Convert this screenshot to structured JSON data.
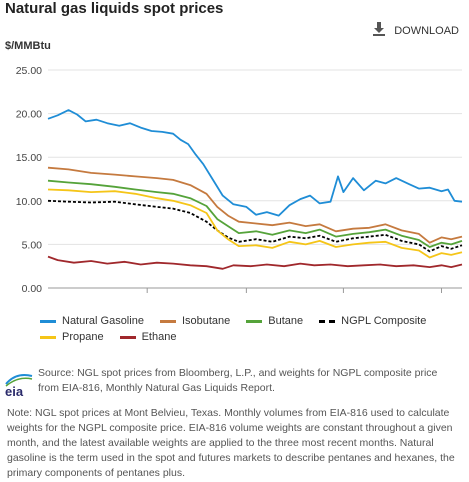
{
  "header": {
    "title": "Natural gas liquids spot prices",
    "download_label": "DOWNLOAD",
    "unit": "$/MMBtu"
  },
  "chart_data": {
    "type": "line",
    "title": "Natural gas liquids spot prices",
    "ylabel": "$/MMBtu",
    "xlabel": "",
    "ylim": [
      0,
      25
    ],
    "yticks": [
      "0.00",
      "5.00",
      "10.00",
      "15.00",
      "20.00",
      "25.00"
    ],
    "xlim": [
      "2014-07-01",
      "2015-07-20"
    ],
    "xticks": [
      {
        "label": "Oct '14",
        "date": "2014-10-01"
      },
      {
        "label": "Jan '15",
        "date": "2015-01-01"
      },
      {
        "label": "Apr '15",
        "date": "2015-04-01"
      },
      {
        "label": "Jul '15",
        "date": "2015-07-01"
      }
    ],
    "grid": true,
    "legend_position": "bottom",
    "series": [
      {
        "name": "Natural Gasoline",
        "color": "#1f8dd6",
        "dash": false,
        "points": [
          [
            "2014-07-01",
            19.4
          ],
          [
            "2014-07-10",
            19.8
          ],
          [
            "2014-07-20",
            20.4
          ],
          [
            "2014-07-28",
            19.9
          ],
          [
            "2014-08-05",
            19.1
          ],
          [
            "2014-08-15",
            19.3
          ],
          [
            "2014-08-25",
            18.9
          ],
          [
            "2014-09-05",
            18.6
          ],
          [
            "2014-09-15",
            18.9
          ],
          [
            "2014-09-25",
            18.4
          ],
          [
            "2014-10-05",
            18.0
          ],
          [
            "2014-10-15",
            17.9
          ],
          [
            "2014-10-25",
            17.7
          ],
          [
            "2014-11-01",
            17.0
          ],
          [
            "2014-11-08",
            16.5
          ],
          [
            "2014-11-15",
            15.3
          ],
          [
            "2014-11-22",
            14.2
          ],
          [
            "2014-12-01",
            12.4
          ],
          [
            "2014-12-10",
            10.6
          ],
          [
            "2014-12-20",
            9.6
          ],
          [
            "2015-01-01",
            9.3
          ],
          [
            "2015-01-10",
            8.4
          ],
          [
            "2015-01-20",
            8.7
          ],
          [
            "2015-01-31",
            8.3
          ],
          [
            "2015-02-10",
            9.5
          ],
          [
            "2015-02-20",
            10.2
          ],
          [
            "2015-03-01",
            10.6
          ],
          [
            "2015-03-10",
            9.7
          ],
          [
            "2015-03-20",
            9.9
          ],
          [
            "2015-03-27",
            12.8
          ],
          [
            "2015-04-01",
            11.0
          ],
          [
            "2015-04-10",
            12.6
          ],
          [
            "2015-04-20",
            11.2
          ],
          [
            "2015-05-01",
            12.3
          ],
          [
            "2015-05-10",
            12.0
          ],
          [
            "2015-05-20",
            12.6
          ],
          [
            "2015-06-01",
            11.9
          ],
          [
            "2015-06-10",
            11.4
          ],
          [
            "2015-06-20",
            11.5
          ],
          [
            "2015-07-01",
            11.1
          ],
          [
            "2015-07-07",
            11.3
          ],
          [
            "2015-07-13",
            10.0
          ],
          [
            "2015-07-20",
            9.9
          ]
        ]
      },
      {
        "name": "Isobutane",
        "color": "#c57a3f",
        "dash": false,
        "points": [
          [
            "2014-07-01",
            13.8
          ],
          [
            "2014-07-20",
            13.6
          ],
          [
            "2014-08-10",
            13.2
          ],
          [
            "2014-09-01",
            13.0
          ],
          [
            "2014-09-20",
            12.8
          ],
          [
            "2014-10-10",
            12.6
          ],
          [
            "2014-10-25",
            12.4
          ],
          [
            "2014-11-10",
            11.8
          ],
          [
            "2014-11-25",
            10.8
          ],
          [
            "2014-12-05",
            9.3
          ],
          [
            "2014-12-15",
            8.3
          ],
          [
            "2014-12-25",
            7.6
          ],
          [
            "2015-01-10",
            7.4
          ],
          [
            "2015-01-25",
            7.2
          ],
          [
            "2015-02-10",
            7.5
          ],
          [
            "2015-02-25",
            7.1
          ],
          [
            "2015-03-10",
            7.3
          ],
          [
            "2015-03-25",
            6.5
          ],
          [
            "2015-04-10",
            6.8
          ],
          [
            "2015-04-25",
            6.9
          ],
          [
            "2015-05-10",
            7.3
          ],
          [
            "2015-05-25",
            6.6
          ],
          [
            "2015-06-10",
            6.2
          ],
          [
            "2015-06-20",
            5.2
          ],
          [
            "2015-07-01",
            5.8
          ],
          [
            "2015-07-10",
            5.6
          ],
          [
            "2015-07-20",
            5.9
          ]
        ]
      },
      {
        "name": "Butane",
        "color": "#55a33a",
        "dash": false,
        "points": [
          [
            "2014-07-01",
            12.3
          ],
          [
            "2014-07-20",
            12.1
          ],
          [
            "2014-08-10",
            11.9
          ],
          [
            "2014-09-01",
            11.6
          ],
          [
            "2014-09-20",
            11.3
          ],
          [
            "2014-10-10",
            11.0
          ],
          [
            "2014-10-25",
            10.8
          ],
          [
            "2014-11-10",
            10.3
          ],
          [
            "2014-11-25",
            9.4
          ],
          [
            "2014-12-05",
            7.9
          ],
          [
            "2014-12-15",
            7.1
          ],
          [
            "2014-12-25",
            6.3
          ],
          [
            "2015-01-10",
            6.5
          ],
          [
            "2015-01-25",
            6.1
          ],
          [
            "2015-02-10",
            6.6
          ],
          [
            "2015-02-25",
            6.3
          ],
          [
            "2015-03-10",
            6.7
          ],
          [
            "2015-03-25",
            5.9
          ],
          [
            "2015-04-10",
            6.2
          ],
          [
            "2015-04-25",
            6.4
          ],
          [
            "2015-05-10",
            6.7
          ],
          [
            "2015-05-25",
            6.0
          ],
          [
            "2015-06-10",
            5.5
          ],
          [
            "2015-06-20",
            4.7
          ],
          [
            "2015-07-01",
            5.2
          ],
          [
            "2015-07-10",
            5.0
          ],
          [
            "2015-07-20",
            5.4
          ]
        ]
      },
      {
        "name": "NGPL Composite",
        "color": "#000000",
        "dash": true,
        "points": [
          [
            "2014-07-01",
            10.0
          ],
          [
            "2014-07-20",
            9.9
          ],
          [
            "2014-08-10",
            9.8
          ],
          [
            "2014-09-01",
            9.9
          ],
          [
            "2014-09-20",
            9.6
          ],
          [
            "2014-10-10",
            9.3
          ],
          [
            "2014-10-25",
            9.1
          ],
          [
            "2014-11-10",
            8.6
          ],
          [
            "2014-11-25",
            7.6
          ],
          [
            "2014-12-05",
            6.6
          ],
          [
            "2014-12-15",
            5.8
          ],
          [
            "2014-12-25",
            5.3
          ],
          [
            "2015-01-10",
            5.6
          ],
          [
            "2015-01-25",
            5.3
          ],
          [
            "2015-02-10",
            5.9
          ],
          [
            "2015-02-25",
            5.7
          ],
          [
            "2015-03-10",
            6.0
          ],
          [
            "2015-03-25",
            5.3
          ],
          [
            "2015-04-10",
            5.7
          ],
          [
            "2015-04-25",
            5.9
          ],
          [
            "2015-05-10",
            6.1
          ],
          [
            "2015-05-25",
            5.4
          ],
          [
            "2015-06-10",
            5.0
          ],
          [
            "2015-06-20",
            4.2
          ],
          [
            "2015-07-01",
            4.8
          ],
          [
            "2015-07-10",
            4.5
          ],
          [
            "2015-07-20",
            4.9
          ]
        ]
      },
      {
        "name": "Propane",
        "color": "#f5c518",
        "dash": false,
        "points": [
          [
            "2014-07-01",
            11.3
          ],
          [
            "2014-07-20",
            11.2
          ],
          [
            "2014-08-10",
            11.0
          ],
          [
            "2014-09-01",
            11.1
          ],
          [
            "2014-09-20",
            10.8
          ],
          [
            "2014-10-10",
            10.3
          ],
          [
            "2014-10-25",
            10.0
          ],
          [
            "2014-11-10",
            9.5
          ],
          [
            "2014-11-25",
            8.6
          ],
          [
            "2014-12-05",
            6.6
          ],
          [
            "2014-12-15",
            5.6
          ],
          [
            "2014-12-25",
            4.8
          ],
          [
            "2015-01-10",
            4.9
          ],
          [
            "2015-01-25",
            4.6
          ],
          [
            "2015-02-10",
            5.3
          ],
          [
            "2015-02-25",
            5.0
          ],
          [
            "2015-03-10",
            5.4
          ],
          [
            "2015-03-25",
            4.7
          ],
          [
            "2015-04-10",
            5.0
          ],
          [
            "2015-04-25",
            5.2
          ],
          [
            "2015-05-10",
            5.3
          ],
          [
            "2015-05-25",
            4.6
          ],
          [
            "2015-06-10",
            4.3
          ],
          [
            "2015-06-20",
            3.5
          ],
          [
            "2015-07-01",
            4.0
          ],
          [
            "2015-07-10",
            3.8
          ],
          [
            "2015-07-20",
            4.1
          ]
        ]
      },
      {
        "name": "Ethane",
        "color": "#a0282c",
        "dash": false,
        "points": [
          [
            "2014-07-01",
            3.6
          ],
          [
            "2014-07-10",
            3.2
          ],
          [
            "2014-07-25",
            2.9
          ],
          [
            "2014-08-10",
            3.1
          ],
          [
            "2014-08-25",
            2.8
          ],
          [
            "2014-09-10",
            3.0
          ],
          [
            "2014-09-25",
            2.7
          ],
          [
            "2014-10-10",
            2.9
          ],
          [
            "2014-10-25",
            2.8
          ],
          [
            "2014-11-10",
            2.6
          ],
          [
            "2014-11-25",
            2.5
          ],
          [
            "2014-12-10",
            2.2
          ],
          [
            "2014-12-20",
            2.6
          ],
          [
            "2015-01-05",
            2.5
          ],
          [
            "2015-01-20",
            2.7
          ],
          [
            "2015-02-05",
            2.5
          ],
          [
            "2015-02-20",
            2.8
          ],
          [
            "2015-03-05",
            2.6
          ],
          [
            "2015-03-20",
            2.7
          ],
          [
            "2015-04-05",
            2.5
          ],
          [
            "2015-04-20",
            2.6
          ],
          [
            "2015-05-05",
            2.7
          ],
          [
            "2015-05-20",
            2.5
          ],
          [
            "2015-06-05",
            2.6
          ],
          [
            "2015-06-20",
            2.4
          ],
          [
            "2015-07-01",
            2.6
          ],
          [
            "2015-07-10",
            2.4
          ],
          [
            "2015-07-20",
            2.7
          ]
        ]
      }
    ]
  },
  "footer": {
    "source": "Source: NGL spot prices from Bloomberg, L.P., and weights for NGPL composite price from EIA-816, Monthly Natural Gas Liquids Report.",
    "logo_text": "eia",
    "note": "Note: NGL spot prices at Mont Belvieu, Texas. Monthly volumes from EIA-816 used to calculate weights for the NGPL composite price. EIA-816 volume weights are constant throughout a given month, and the latest available weights are applied to the three most recent months. Natural gasoline is the term used in the spot and futures markets to describe pentanes and hexanes, the primary components of pentanes plus."
  },
  "icons": {
    "download": "download-icon"
  }
}
